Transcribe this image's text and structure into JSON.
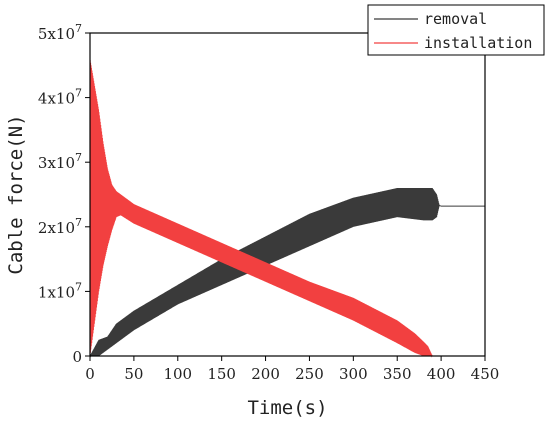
{
  "chart_data": {
    "type": "line",
    "title": "",
    "xlabel": "Time(s)",
    "ylabel": "Cable force(N)",
    "xlim": [
      0,
      450
    ],
    "ylim": [
      0,
      50000000
    ],
    "xticks": [
      0,
      50,
      100,
      150,
      200,
      250,
      300,
      350,
      400,
      450
    ],
    "xtick_labels": [
      "0",
      "50",
      "100",
      "150",
      "200",
      "250",
      "300",
      "350",
      "400",
      "450"
    ],
    "yticks": [
      0,
      10000000,
      20000000,
      30000000,
      40000000,
      50000000
    ],
    "ytick_labels": [
      {
        "mantissa": "0",
        "exponent": ""
      },
      {
        "mantissa": "1x10",
        "exponent": "7"
      },
      {
        "mantissa": "2x10",
        "exponent": "7"
      },
      {
        "mantissa": "3x10",
        "exponent": "7"
      },
      {
        "mantissa": "4x10",
        "exponent": "7"
      },
      {
        "mantissa": "5x10",
        "exponent": "7"
      }
    ],
    "grid": false,
    "legend_position": "top-right",
    "series": [
      {
        "name": "removal",
        "color": "#3a3a3a",
        "x": [
          0,
          10,
          20,
          30,
          50,
          100,
          150,
          200,
          250,
          300,
          350,
          380,
          390,
          395,
          398,
          400,
          410,
          450
        ],
        "y_min": [
          0,
          0,
          1000000,
          2000000,
          4000000,
          8000000,
          11000000,
          14000000,
          17000000,
          20000000,
          21500000,
          21000000,
          21000000,
          21500000,
          23300000,
          23200000,
          23200000,
          23200000
        ],
        "y_max": [
          0,
          2500000,
          3000000,
          5000000,
          7000000,
          11000000,
          15000000,
          18500000,
          22000000,
          24500000,
          26000000,
          26000000,
          26000000,
          25000000,
          23300000,
          23200000,
          23200000,
          23200000
        ]
      },
      {
        "name": "installation",
        "color": "#f24040",
        "x": [
          0,
          5,
          10,
          15,
          20,
          25,
          30,
          35,
          50,
          100,
          150,
          200,
          250,
          300,
          350,
          370,
          380,
          385,
          390,
          450
        ],
        "y_min": [
          0,
          5000000,
          10000000,
          14000000,
          17000000,
          19500000,
          21500000,
          21800000,
          20500000,
          17500000,
          14500000,
          11500000,
          8500000,
          5500000,
          2000000,
          500000,
          0,
          0,
          0,
          0
        ],
        "y_max": [
          46000000,
          42000000,
          38000000,
          33000000,
          29000000,
          26500000,
          25500000,
          25000000,
          23500000,
          20500000,
          17500000,
          14500000,
          11500000,
          9000000,
          5500000,
          3500000,
          2200000,
          1500000,
          0,
          0
        ]
      }
    ]
  }
}
